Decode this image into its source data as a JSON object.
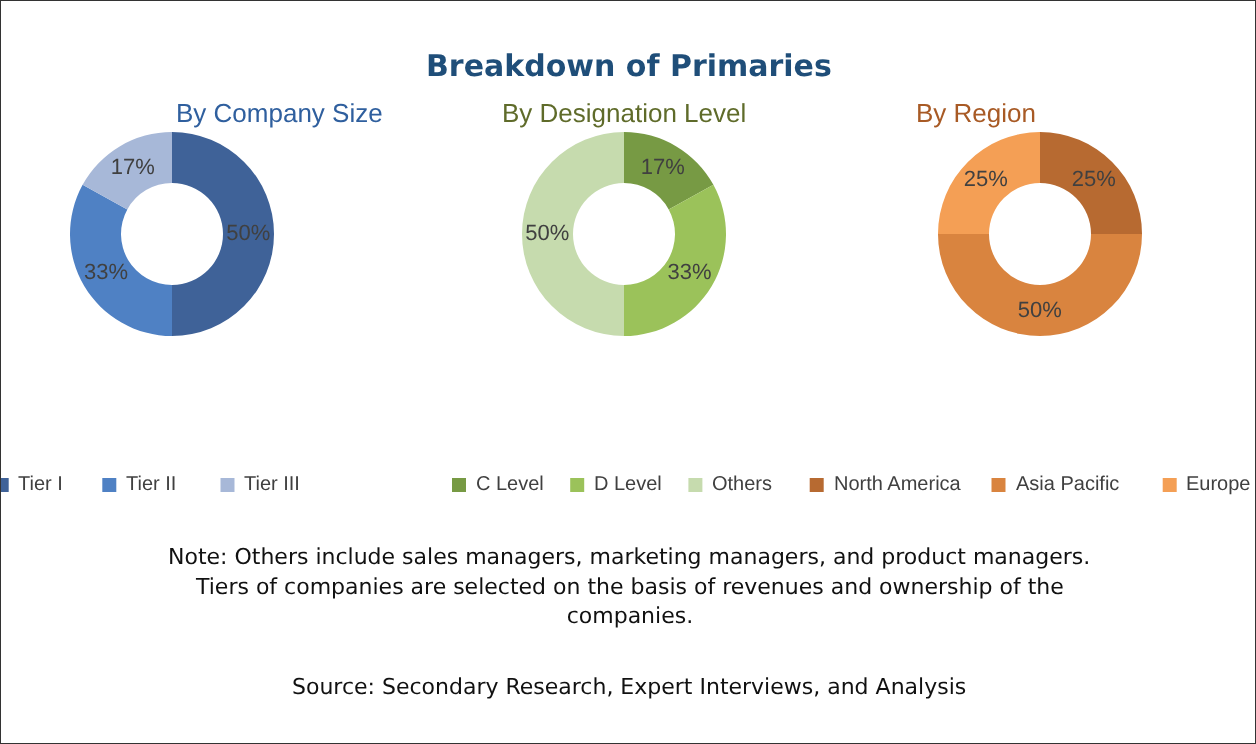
{
  "chart_data": [
    {
      "type": "other",
      "title": "Breakdown of Primaries",
      "annotations": [
        "Note: Others include sales managers, marketing managers, and product managers.",
        "Tiers of companies are selected on the basis of revenues and ownership of the companies.",
        "Source: Secondary Research, Expert Interviews, and Analysis"
      ]
    },
    {
      "type": "donut",
      "title": "By Company Size",
      "categories": [
        "Tier I",
        "Tier II",
        "Tier III"
      ],
      "values": [
        50,
        33,
        17
      ],
      "colors": [
        "#3f6298",
        "#4f81c4",
        "#a7b8d8"
      ],
      "value_labels": [
        "50%",
        "33%",
        "17%"
      ],
      "legend": "bottom"
    },
    {
      "type": "donut",
      "title": "By Designation Level",
      "categories": [
        "C Level",
        "D Level",
        "Others"
      ],
      "values": [
        17,
        33,
        50
      ],
      "colors": [
        "#779a44",
        "#9bc25a",
        "#c6dbae"
      ],
      "value_labels": [
        "17%",
        "33%",
        "50%"
      ],
      "legend": "bottom"
    },
    {
      "type": "donut",
      "title": "By Region",
      "categories": [
        "North America",
        "Asia Pacific",
        "Europe"
      ],
      "values": [
        25,
        50,
        25
      ],
      "colors": [
        "#b76a31",
        "#d9843f",
        "#f49f55"
      ],
      "value_labels": [
        "25%",
        "50%",
        "25%"
      ],
      "legend": "bottom"
    }
  ]
}
